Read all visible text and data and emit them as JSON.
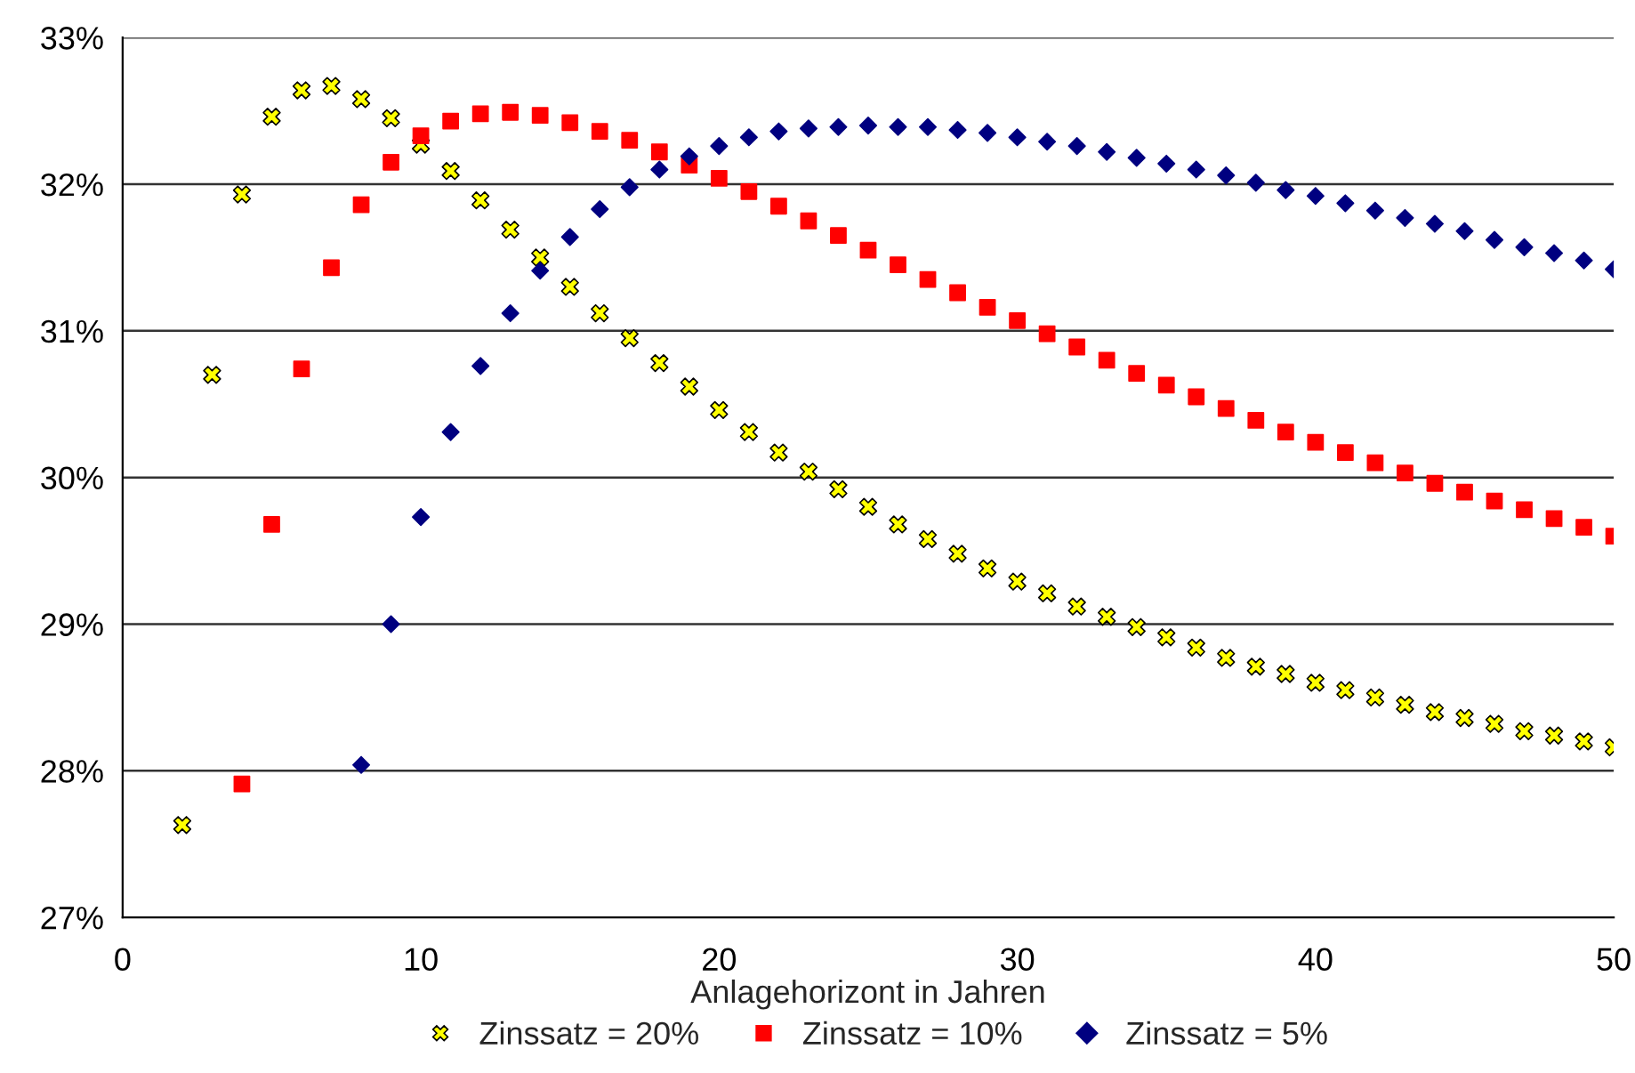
{
  "chart_data": {
    "type": "scatter",
    "xlabel": "Anlagehorizont in Jahren",
    "xlim": [
      0,
      50
    ],
    "xticks": [
      0,
      10,
      20,
      30,
      40,
      50
    ],
    "ylim": [
      27,
      33
    ],
    "yticks": [
      {
        "value": 27,
        "label": "27%"
      },
      {
        "value": 28,
        "label": "28%"
      },
      {
        "value": 29,
        "label": "29%"
      },
      {
        "value": 30,
        "label": "30%"
      },
      {
        "value": 31,
        "label": "31%"
      },
      {
        "value": 32,
        "label": "32%"
      },
      {
        "value": 33,
        "label": "33%"
      }
    ],
    "grid": "y",
    "legend": "bottom",
    "series": [
      {
        "name": "Zinssatz = 20%",
        "color": "#ffff00",
        "marker": "cross",
        "x": [
          2,
          3,
          4,
          5,
          6,
          7,
          8,
          9,
          10,
          11,
          12,
          13,
          14,
          15,
          16,
          17,
          18,
          19,
          20,
          21,
          22,
          23,
          24,
          25,
          26,
          27,
          28,
          29,
          30,
          31,
          32,
          33,
          34,
          35,
          36,
          37,
          38,
          39,
          40,
          41,
          42,
          43,
          44,
          45,
          46,
          47,
          48,
          49,
          50
        ],
        "values": [
          27.63,
          30.7,
          31.93,
          32.46,
          32.64,
          32.67,
          32.58,
          32.45,
          32.27,
          32.09,
          31.89,
          31.69,
          31.5,
          31.3,
          31.12,
          30.95,
          30.78,
          30.62,
          30.46,
          30.31,
          30.17,
          30.04,
          29.92,
          29.8,
          29.68,
          29.58,
          29.48,
          29.38,
          29.29,
          29.21,
          29.12,
          29.05,
          28.98,
          28.91,
          28.84,
          28.77,
          28.71,
          28.66,
          28.6,
          28.55,
          28.5,
          28.45,
          28.4,
          28.36,
          28.32,
          28.27,
          28.24,
          28.2,
          28.16
        ]
      },
      {
        "name": "Zinssatz = 10%",
        "color": "#ff0000",
        "marker": "square",
        "x": [
          4,
          5,
          6,
          7,
          8,
          9,
          10,
          11,
          12,
          13,
          14,
          15,
          16,
          17,
          18,
          19,
          20,
          21,
          22,
          23,
          24,
          25,
          26,
          27,
          28,
          29,
          30,
          31,
          32,
          33,
          34,
          35,
          36,
          37,
          38,
          39,
          40,
          41,
          42,
          43,
          44,
          45,
          46,
          47,
          48,
          49,
          50
        ],
        "values": [
          27.91,
          29.68,
          30.74,
          31.43,
          31.86,
          32.15,
          32.33,
          32.43,
          32.48,
          32.49,
          32.47,
          32.42,
          32.36,
          32.3,
          32.22,
          32.13,
          32.04,
          31.95,
          31.85,
          31.75,
          31.65,
          31.55,
          31.45,
          31.35,
          31.26,
          31.16,
          31.07,
          30.98,
          30.89,
          30.8,
          30.71,
          30.63,
          30.55,
          30.47,
          30.39,
          30.31,
          30.24,
          30.17,
          30.1,
          30.03,
          29.96,
          29.9,
          29.84,
          29.78,
          29.72,
          29.66,
          29.6
        ]
      },
      {
        "name": "Zinssatz = 5%",
        "color": "#000080",
        "marker": "diamond",
        "x": [
          8,
          9,
          10,
          11,
          12,
          13,
          14,
          15,
          16,
          17,
          18,
          19,
          20,
          21,
          22,
          23,
          24,
          25,
          26,
          27,
          28,
          29,
          30,
          31,
          32,
          33,
          34,
          35,
          36,
          37,
          38,
          39,
          40,
          41,
          42,
          43,
          44,
          45,
          46,
          47,
          48,
          49,
          50
        ],
        "values": [
          28.04,
          29.0,
          29.73,
          30.31,
          30.76,
          31.12,
          31.41,
          31.64,
          31.83,
          31.98,
          32.1,
          32.19,
          32.26,
          32.32,
          32.36,
          32.38,
          32.39,
          32.4,
          32.39,
          32.39,
          32.37,
          32.35,
          32.32,
          32.29,
          32.26,
          32.22,
          32.18,
          32.14,
          32.1,
          32.06,
          32.01,
          31.96,
          31.92,
          31.87,
          31.82,
          31.77,
          31.73,
          31.68,
          31.62,
          31.57,
          31.53,
          31.48,
          31.42
        ]
      }
    ]
  }
}
